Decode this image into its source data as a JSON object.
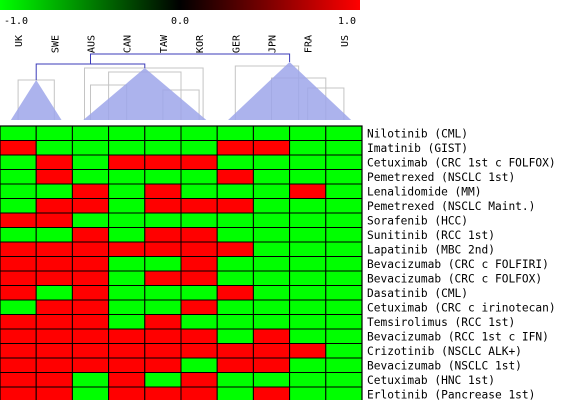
{
  "chart_data": {
    "type": "heatmap",
    "title": "",
    "color_scale": {
      "min_label": "-1.0",
      "mid_label": "0.0",
      "max_label": "1.0",
      "range": [
        -1.0,
        1.0
      ],
      "low_color": "#00ff00",
      "mid_color": "#000000",
      "high_color": "#ff0000"
    },
    "columns": [
      "UK",
      "SWE",
      "AUS",
      "CAN",
      "TAW",
      "KOR",
      "GER",
      "JPN",
      "FRA",
      "US"
    ],
    "rows": [
      "Nilotinib (CML)",
      "Imatinib (GIST)",
      "Cetuximab (CRC 1st c FOLFOX)",
      "Pemetrexed (NSCLC 1st)",
      "Lenalidomide (MM)",
      "Pemetrexed (NSCLC Maint.)",
      "Sorafenib (HCC)",
      "Sunitinib (RCC 1st)",
      "Lapatinib (MBC 2nd)",
      "Bevacizumab (CRC c FOLFIRI)",
      "Bevacizumab (CRC c FOLFOX)",
      "Dasatinib (CML)",
      "Cetuximab (CRC c irinotecan)",
      "Temsirolimus (RCC 1st)",
      "Bevacizumab (RCC 1st c IFN)",
      "Crizotinib (NSCLC ALK+)",
      "Bevacizumab (NSCLC 1st)",
      "Cetuximab (HNC 1st)",
      "Erlotinib (Pancrease 1st)"
    ],
    "values": [
      [
        -1,
        -1,
        -1,
        -1,
        -1,
        -1,
        -1,
        -1,
        -1,
        -1
      ],
      [
        1,
        -1,
        -1,
        -1,
        -1,
        -1,
        1,
        1,
        -1,
        -1
      ],
      [
        -1,
        1,
        -1,
        1,
        1,
        1,
        -1,
        -1,
        -1,
        -1
      ],
      [
        -1,
        1,
        -1,
        -1,
        -1,
        -1,
        1,
        -1,
        -1,
        -1
      ],
      [
        -1,
        -1,
        1,
        -1,
        1,
        -1,
        -1,
        -1,
        1,
        -1
      ],
      [
        -1,
        1,
        1,
        -1,
        1,
        1,
        1,
        -1,
        -1,
        -1
      ],
      [
        1,
        1,
        -1,
        -1,
        -1,
        -1,
        -1,
        -1,
        -1,
        -1
      ],
      [
        -1,
        -1,
        1,
        -1,
        1,
        1,
        -1,
        -1,
        -1,
        -1
      ],
      [
        1,
        1,
        1,
        1,
        1,
        1,
        1,
        -1,
        -1,
        -1
      ],
      [
        1,
        1,
        1,
        -1,
        -1,
        1,
        -1,
        -1,
        -1,
        -1
      ],
      [
        1,
        1,
        1,
        -1,
        1,
        1,
        -1,
        -1,
        -1,
        -1
      ],
      [
        1,
        -1,
        1,
        -1,
        -1,
        -1,
        1,
        -1,
        -1,
        -1
      ],
      [
        -1,
        1,
        1,
        -1,
        -1,
        1,
        -1,
        -1,
        -1,
        -1
      ],
      [
        1,
        1,
        1,
        -1,
        1,
        -1,
        -1,
        -1,
        -1,
        -1
      ],
      [
        1,
        1,
        1,
        1,
        1,
        1,
        -1,
        1,
        -1,
        -1
      ],
      [
        1,
        1,
        1,
        1,
        1,
        1,
        1,
        1,
        1,
        -1
      ],
      [
        1,
        1,
        1,
        1,
        1,
        -1,
        1,
        1,
        -1,
        -1
      ],
      [
        1,
        1,
        -1,
        1,
        -1,
        1,
        -1,
        -1,
        -1,
        -1
      ],
      [
        1,
        1,
        -1,
        1,
        1,
        1,
        -1,
        1,
        -1,
        -1
      ]
    ],
    "dendrogram_groups": [
      [
        "UK",
        "SWE"
      ],
      [
        "AUS",
        "CAN",
        "TAW",
        "KOR"
      ],
      [
        "GER",
        "JPN",
        "FRA",
        "US"
      ]
    ],
    "colors": {
      "dendrogram_line": "#3b3bb8",
      "dendrogram_fill": "#9da6ea",
      "dendrogram_gray": "#c4c4c4",
      "grid": "#000000"
    }
  }
}
